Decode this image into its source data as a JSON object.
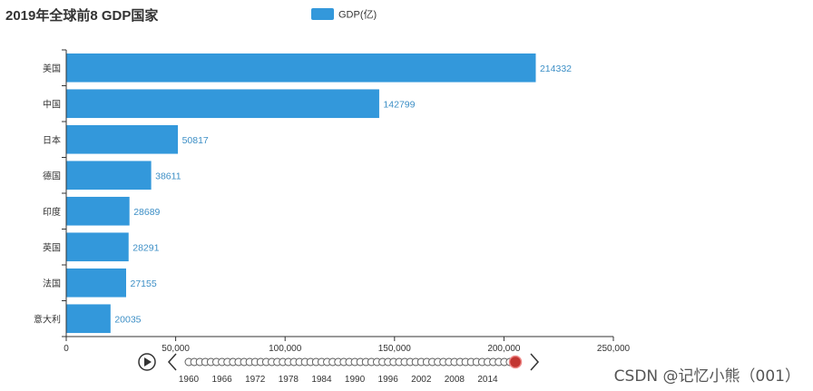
{
  "chart_data": {
    "type": "bar",
    "orientation": "horizontal",
    "title": "2019年全球前8 GDP国家",
    "legend": {
      "label": "GDP(亿)",
      "color": "#3398db",
      "placement": "top-center"
    },
    "categories": [
      "美国",
      "中国",
      "日本",
      "德国",
      "印度",
      "英国",
      "法国",
      "意大利"
    ],
    "values": [
      214332,
      142799,
      50817,
      38611,
      28689,
      28291,
      27155,
      20035
    ],
    "xlim": [
      0,
      250000
    ],
    "x_ticks": [
      "0",
      "50,000",
      "100,000",
      "150,000",
      "200,000",
      "250,000"
    ],
    "grid": false,
    "bar_color": "#3398db",
    "label_color": "#3d8fc6"
  },
  "timeline": {
    "labels": [
      "1960",
      "1966",
      "1972",
      "1978",
      "1984",
      "1990",
      "1996",
      "2002",
      "2008",
      "2014"
    ],
    "point_count": 60,
    "current_index": 59,
    "marker_color": "#c23531"
  },
  "watermark": "CSDN @记忆小熊（001）"
}
